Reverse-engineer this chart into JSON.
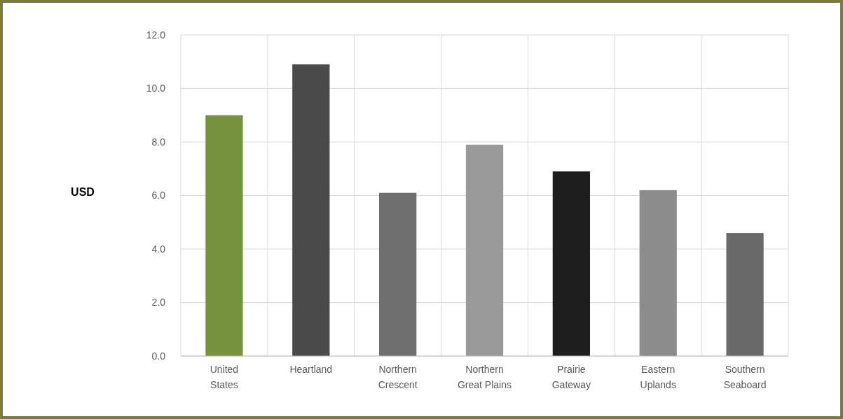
{
  "chart_data": {
    "type": "bar",
    "ylabel": "USD",
    "categories": [
      "United States",
      "Heartland",
      "Northern Crescent",
      "Northern Great Plains",
      "Prairie Gateway",
      "Eastern Uplands",
      "Southern Seaboard"
    ],
    "values": [
      9.0,
      10.9,
      6.1,
      7.9,
      6.9,
      6.2,
      4.6
    ],
    "colors": [
      "#76923c",
      "#4a4a4a",
      "#6e6e6e",
      "#9a9a9a",
      "#1e1e1e",
      "#8c8c8c",
      "#6a6a6a"
    ],
    "ylim": [
      0,
      12
    ],
    "yticks": [
      {
        "value": 0,
        "label": "0.0"
      },
      {
        "value": 2,
        "label": "2.0"
      },
      {
        "value": 4,
        "label": "4.0"
      },
      {
        "value": 6,
        "label": "6.0"
      },
      {
        "value": 8,
        "label": "8.0"
      },
      {
        "value": 10,
        "label": "10.0"
      },
      {
        "value": 12,
        "label": "12.0"
      }
    ],
    "grid": true
  }
}
